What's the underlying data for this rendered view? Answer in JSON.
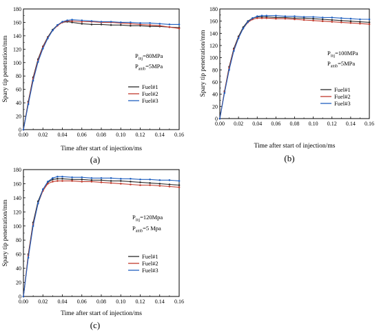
{
  "figure": {
    "type": "multi-panel spray penetration chart",
    "legend_entries": [
      "Fuel#1",
      "Fuel#2",
      "Fuel#3"
    ],
    "colors": {
      "Fuel#1": "#2a2a2a",
      "Fuel#2": "#c0392b",
      "Fuel#3": "#1f5fbf"
    }
  },
  "chart_data": [
    {
      "type": "line",
      "panel_label": "(a)",
      "title": "",
      "xlabel": "Time after start of injection/ms",
      "ylabel": "Spary tip penetration/mm",
      "xlim": [
        0.0,
        0.16
      ],
      "ylim": [
        0,
        180
      ],
      "xticks": [
        "0.00",
        "0.02",
        "0.04",
        "0.06",
        "0.08",
        "0.10",
        "0.12",
        "0.14",
        "0.16"
      ],
      "yticks": [
        "0",
        "20",
        "40",
        "60",
        "80",
        "100",
        "120",
        "140",
        "160",
        "180"
      ],
      "annotation": {
        "line1_main": "P",
        "line1_sub": "inj",
        "line1_rest": "=80MPa",
        "line2_main": "P",
        "line2_sub": "amb",
        "line2_rest": "=5MPa"
      },
      "legend_position": "center-right",
      "series": [
        {
          "name": "Fuel#1",
          "x": [
            0.0,
            0.005,
            0.01,
            0.015,
            0.02,
            0.025,
            0.03,
            0.035,
            0.04,
            0.045,
            0.05,
            0.06,
            0.07,
            0.08,
            0.09,
            0.1,
            0.11,
            0.12,
            0.13,
            0.14,
            0.15,
            0.16
          ],
          "y": [
            0,
            42,
            78,
            105,
            124,
            138,
            149,
            156,
            160,
            161,
            160,
            158,
            157,
            157,
            156,
            156,
            155,
            155,
            154,
            154,
            153,
            152
          ]
        },
        {
          "name": "Fuel#2",
          "x": [
            0.0,
            0.005,
            0.01,
            0.015,
            0.02,
            0.025,
            0.03,
            0.035,
            0.04,
            0.045,
            0.05,
            0.06,
            0.07,
            0.08,
            0.09,
            0.1,
            0.11,
            0.12,
            0.13,
            0.14,
            0.15,
            0.16
          ],
          "y": [
            0,
            40,
            76,
            103,
            123,
            137,
            148,
            155,
            160,
            162,
            162,
            161,
            161,
            160,
            160,
            159,
            158,
            157,
            156,
            155,
            153,
            151
          ]
        },
        {
          "name": "Fuel#3",
          "x": [
            0.0,
            0.005,
            0.01,
            0.015,
            0.02,
            0.025,
            0.03,
            0.035,
            0.04,
            0.045,
            0.05,
            0.06,
            0.07,
            0.08,
            0.09,
            0.1,
            0.11,
            0.12,
            0.13,
            0.14,
            0.15,
            0.16
          ],
          "y": [
            0,
            38,
            73,
            101,
            121,
            136,
            148,
            156,
            161,
            163,
            164,
            163,
            162,
            161,
            161,
            160,
            160,
            159,
            159,
            158,
            157,
            157
          ]
        }
      ]
    },
    {
      "type": "line",
      "panel_label": "(b)",
      "title": "",
      "xlabel": "Time after start of injection/ms",
      "ylabel": "Spary tip penetration/mm",
      "xlim": [
        0.0,
        0.16
      ],
      "ylim": [
        0,
        180
      ],
      "xticks": [
        "0.00",
        "0.02",
        "0.04",
        "0.06",
        "0.08",
        "0.10",
        "0.12",
        "0.14",
        "0.16"
      ],
      "yticks": [
        "0",
        "20",
        "40",
        "60",
        "80",
        "100",
        "120",
        "140",
        "160",
        "180"
      ],
      "annotation": {
        "line1_main": "P",
        "line1_sub": "inj",
        "line1_rest": "=100MPa",
        "line2_main": "P",
        "line2_sub": "amb",
        "line2_rest": "=5MPa"
      },
      "legend_position": "center-right",
      "series": [
        {
          "name": "Fuel#1",
          "x": [
            0.0,
            0.005,
            0.01,
            0.015,
            0.02,
            0.025,
            0.03,
            0.035,
            0.04,
            0.045,
            0.05,
            0.06,
            0.07,
            0.08,
            0.09,
            0.1,
            0.11,
            0.12,
            0.13,
            0.14,
            0.15,
            0.16
          ],
          "y": [
            0,
            45,
            85,
            115,
            135,
            150,
            160,
            165,
            167,
            167,
            167,
            166,
            166,
            165,
            165,
            164,
            163,
            162,
            161,
            160,
            159,
            158
          ]
        },
        {
          "name": "Fuel#2",
          "x": [
            0.0,
            0.005,
            0.01,
            0.015,
            0.02,
            0.025,
            0.03,
            0.035,
            0.04,
            0.045,
            0.05,
            0.06,
            0.07,
            0.08,
            0.09,
            0.1,
            0.11,
            0.12,
            0.13,
            0.14,
            0.15,
            0.16
          ],
          "y": [
            0,
            44,
            83,
            113,
            133,
            148,
            158,
            163,
            165,
            165,
            165,
            164,
            164,
            163,
            162,
            161,
            160,
            159,
            158,
            157,
            156,
            155
          ]
        },
        {
          "name": "Fuel#3",
          "x": [
            0.0,
            0.005,
            0.01,
            0.015,
            0.02,
            0.025,
            0.03,
            0.035,
            0.04,
            0.045,
            0.05,
            0.06,
            0.07,
            0.08,
            0.09,
            0.1,
            0.11,
            0.12,
            0.13,
            0.14,
            0.15,
            0.16
          ],
          "y": [
            0,
            42,
            80,
            111,
            132,
            148,
            159,
            165,
            168,
            169,
            169,
            169,
            168,
            168,
            167,
            167,
            166,
            166,
            165,
            164,
            163,
            163
          ]
        }
      ]
    },
    {
      "type": "line",
      "panel_label": "(c)",
      "title": "",
      "xlabel": "Time after start of injection/ms",
      "ylabel": "Spary tip penetration/mm",
      "xlim": [
        0.0,
        0.16
      ],
      "ylim": [
        0,
        180
      ],
      "xticks": [
        "0.00",
        "0.02",
        "0.04",
        "0.06",
        "0.08",
        "0.10",
        "0.12",
        "0.14",
        "0.16"
      ],
      "yticks": [
        "0",
        "20",
        "40",
        "60",
        "80",
        "100",
        "120",
        "140",
        "160",
        "180"
      ],
      "annotation": {
        "line1_main": "P",
        "line1_sub": "inj",
        "line1_rest": "=120Mpa",
        "line2_main": "P",
        "line2_sub": "amb",
        "line2_rest": "=5 Mpa"
      },
      "legend_position": "center-right",
      "series": [
        {
          "name": "Fuel#1",
          "x": [
            0.0,
            0.005,
            0.01,
            0.015,
            0.02,
            0.025,
            0.03,
            0.035,
            0.04,
            0.05,
            0.06,
            0.07,
            0.08,
            0.09,
            0.1,
            0.11,
            0.12,
            0.13,
            0.14,
            0.15,
            0.16
          ],
          "y": [
            0,
            60,
            105,
            135,
            152,
            162,
            166,
            167,
            167,
            166,
            166,
            165,
            165,
            164,
            164,
            163,
            162,
            161,
            160,
            159,
            158
          ]
        },
        {
          "name": "Fuel#2",
          "x": [
            0.0,
            0.005,
            0.01,
            0.015,
            0.02,
            0.025,
            0.03,
            0.035,
            0.04,
            0.05,
            0.06,
            0.07,
            0.08,
            0.09,
            0.1,
            0.11,
            0.12,
            0.13,
            0.14,
            0.15,
            0.16
          ],
          "y": [
            0,
            58,
            102,
            132,
            150,
            160,
            163,
            164,
            164,
            164,
            163,
            163,
            162,
            161,
            160,
            159,
            158,
            158,
            157,
            156,
            155
          ]
        },
        {
          "name": "Fuel#3",
          "x": [
            0.0,
            0.005,
            0.01,
            0.015,
            0.02,
            0.025,
            0.03,
            0.035,
            0.04,
            0.05,
            0.06,
            0.07,
            0.08,
            0.09,
            0.1,
            0.11,
            0.12,
            0.13,
            0.14,
            0.15,
            0.16
          ],
          "y": [
            0,
            55,
            100,
            132,
            152,
            163,
            168,
            170,
            170,
            169,
            169,
            168,
            168,
            168,
            167,
            167,
            166,
            166,
            165,
            165,
            164
          ]
        }
      ]
    }
  ]
}
